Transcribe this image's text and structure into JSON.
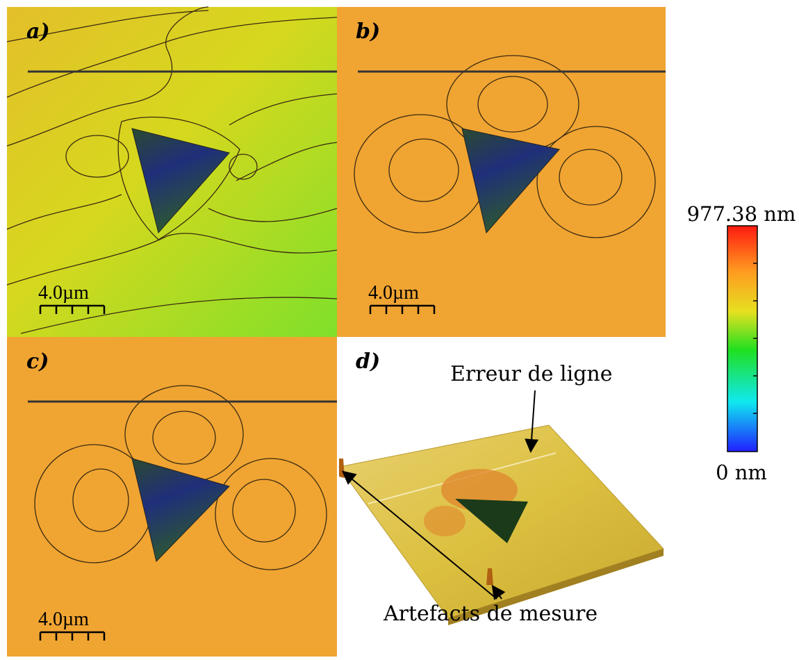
{
  "panels": [
    {
      "label": "a)",
      "scale_bar": "4.0µm"
    },
    {
      "label": "b)",
      "scale_bar": "4.0µm"
    },
    {
      "label": "c)",
      "scale_bar": "4.0µm"
    },
    {
      "label": "d)"
    }
  ],
  "annotations": {
    "line_error": "Erreur de ligne",
    "artifacts": "Artefacts de mesure"
  },
  "colorbar": {
    "max_label": "977.38 nm",
    "min_label": "0 nm"
  }
}
